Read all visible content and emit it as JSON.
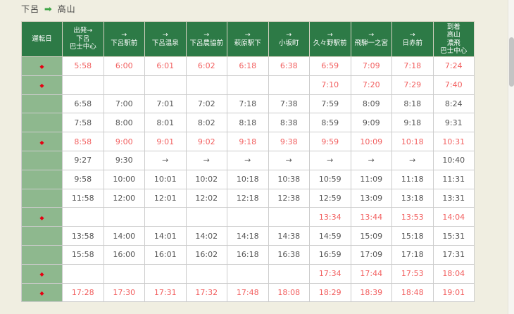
{
  "title": {
    "from": "下呂",
    "to": "高山",
    "arrow_icon": "➡"
  },
  "colors": {
    "header_green": "#2d7a46",
    "day_column_green": "#8eb88e",
    "red_time_text": "#f25f5f",
    "diamond_red": "#e60012",
    "page_background": "#f0eee1",
    "cell_border": "#cccccc",
    "black_time_text": "#555555"
  },
  "table": {
    "day_column_header": "運転日",
    "diamond_icon": "◆",
    "arrow_glyph": "→",
    "columns": [
      {
        "lines": [
          "出発→",
          "下呂",
          "巴士中心"
        ]
      },
      {
        "lines": [
          "→",
          "下呂駅前"
        ]
      },
      {
        "lines": [
          "→",
          "下呂温泉"
        ]
      },
      {
        "lines": [
          "→",
          "下呂農協前"
        ]
      },
      {
        "lines": [
          "→",
          "萩原駅下"
        ]
      },
      {
        "lines": [
          "→",
          "小坂町"
        ]
      },
      {
        "lines": [
          "→",
          "久々野駅前"
        ]
      },
      {
        "lines": [
          "→",
          "飛騨一之宮"
        ]
      },
      {
        "lines": [
          "→",
          "日赤前"
        ]
      },
      {
        "lines": [
          "到着",
          "高山",
          "濃飛",
          "巴士中心"
        ]
      }
    ],
    "rows": [
      {
        "diamond": true,
        "red": true,
        "times": [
          "5:58",
          "6:00",
          "6:01",
          "6:02",
          "6:18",
          "6:38",
          "6:59",
          "7:09",
          "7:18",
          "7:24"
        ]
      },
      {
        "diamond": true,
        "red": true,
        "times": [
          "",
          "",
          "",
          "",
          "",
          "",
          "7:10",
          "7:20",
          "7:29",
          "7:40"
        ]
      },
      {
        "diamond": false,
        "red": false,
        "times": [
          "6:58",
          "7:00",
          "7:01",
          "7:02",
          "7:18",
          "7:38",
          "7:59",
          "8:09",
          "8:18",
          "8:24"
        ]
      },
      {
        "diamond": false,
        "red": false,
        "times": [
          "7:58",
          "8:00",
          "8:01",
          "8:02",
          "8:18",
          "8:38",
          "8:59",
          "9:09",
          "9:18",
          "9:31"
        ]
      },
      {
        "diamond": true,
        "red": true,
        "times": [
          "8:58",
          "9:00",
          "9:01",
          "9:02",
          "9:18",
          "9:38",
          "9:59",
          "10:09",
          "10:18",
          "10:31"
        ]
      },
      {
        "diamond": false,
        "red": false,
        "times": [
          "9:27",
          "9:30",
          "→",
          "→",
          "→",
          "→",
          "→",
          "→",
          "→",
          "10:40"
        ]
      },
      {
        "diamond": false,
        "red": false,
        "times": [
          "9:58",
          "10:00",
          "10:01",
          "10:02",
          "10:18",
          "10:38",
          "10:59",
          "11:09",
          "11:18",
          "11:31"
        ]
      },
      {
        "diamond": false,
        "red": false,
        "times": [
          "11:58",
          "12:00",
          "12:01",
          "12:02",
          "12:18",
          "12:38",
          "12:59",
          "13:09",
          "13:18",
          "13:31"
        ]
      },
      {
        "diamond": true,
        "red": true,
        "times": [
          "",
          "",
          "",
          "",
          "",
          "",
          "13:34",
          "13:44",
          "13:53",
          "14:04"
        ]
      },
      {
        "diamond": false,
        "red": false,
        "times": [
          "13:58",
          "14:00",
          "14:01",
          "14:02",
          "14:18",
          "14:38",
          "14:59",
          "15:09",
          "15:18",
          "15:31"
        ]
      },
      {
        "diamond": false,
        "red": false,
        "times": [
          "15:58",
          "16:00",
          "16:01",
          "16:02",
          "16:18",
          "16:38",
          "16:59",
          "17:09",
          "17:18",
          "17:31"
        ]
      },
      {
        "diamond": true,
        "red": true,
        "times": [
          "",
          "",
          "",
          "",
          "",
          "",
          "17:34",
          "17:44",
          "17:53",
          "18:04"
        ]
      },
      {
        "diamond": true,
        "red": true,
        "times": [
          "17:28",
          "17:30",
          "17:31",
          "17:32",
          "17:48",
          "18:08",
          "18:29",
          "18:39",
          "18:48",
          "19:01"
        ]
      }
    ]
  }
}
